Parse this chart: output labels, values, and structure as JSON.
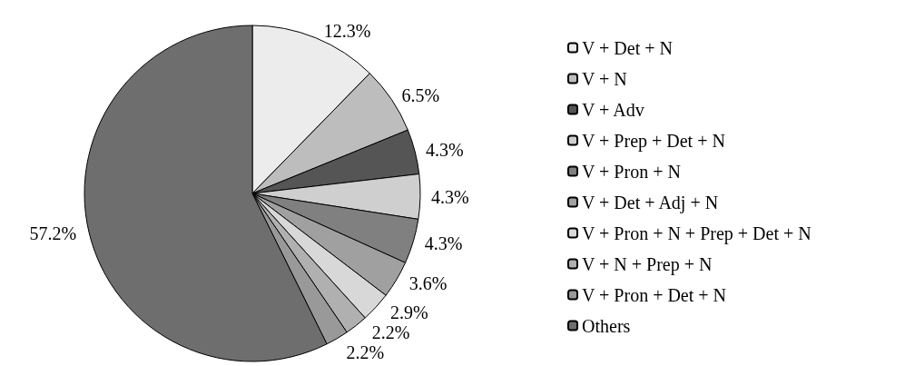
{
  "chart_data": {
    "type": "pie",
    "categories": [
      "V + Det + N",
      "V + N",
      "V + Adv",
      "V + Prep + Det + N",
      "V + Pron + N",
      "V + Det + Adj + N",
      "V + Pron + N + Prep + Det + N",
      "V + N + Prep + N",
      "V + Pron + Det + N",
      "Others"
    ],
    "values": [
      12.3,
      6.5,
      4.3,
      4.3,
      4.3,
      3.6,
      2.9,
      2.2,
      2.2,
      57.2
    ],
    "value_labels": [
      "12.3%",
      "6.5%",
      "4.3%",
      "4.3%",
      "4.3%",
      "3.6%",
      "2.9%",
      "2.2%",
      "2.2%",
      "57.2%"
    ],
    "colors": [
      "#ececec",
      "#bdbdbd",
      "#555555",
      "#cfcfcf",
      "#808080",
      "#a0a0a0",
      "#d8d8d8",
      "#b0b0b0",
      "#999999",
      "#6e6e6e"
    ],
    "legend": "right"
  }
}
